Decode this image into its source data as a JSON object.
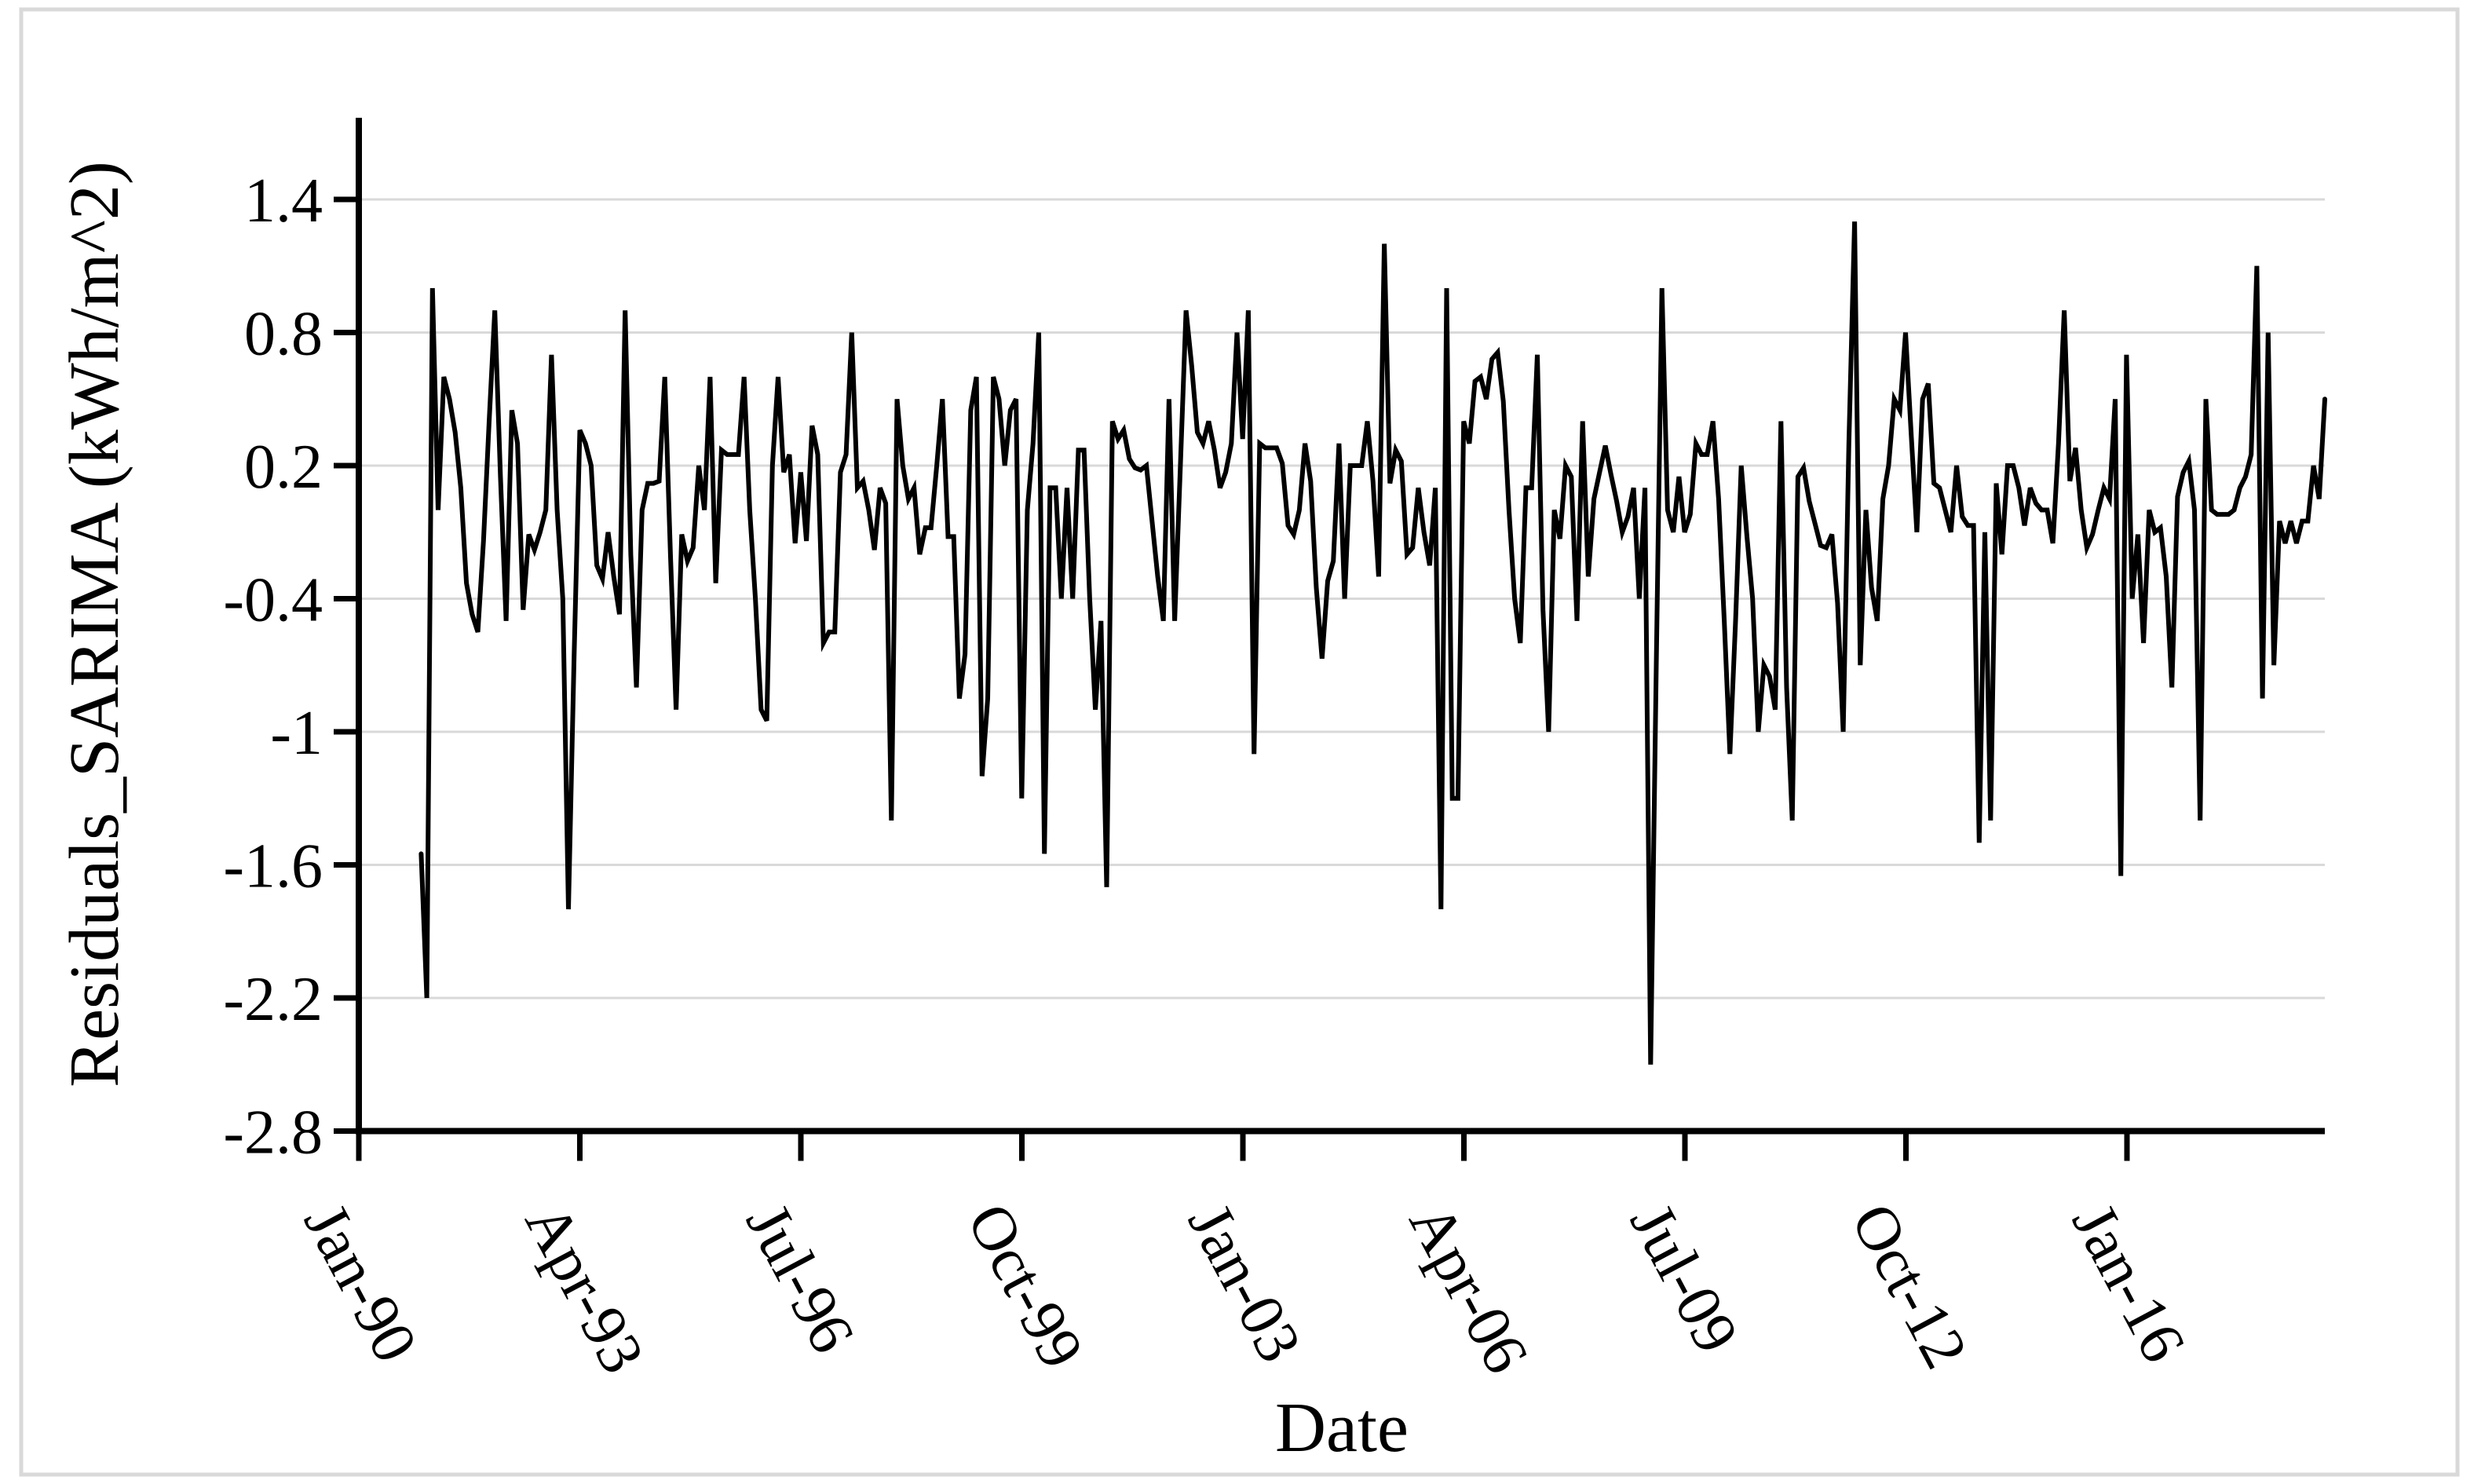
{
  "figure": {
    "background": "#ffffff",
    "border_color": "#d9d9d9",
    "plot_background": "#ffffff"
  },
  "chart_data": {
    "type": "line",
    "title": "",
    "xlabel": "Date",
    "ylabel": "Residuals_SARIMA (kWh/m^2)",
    "legend": "none",
    "grid": "horizontal",
    "line_color": "#000000",
    "grid_color": "#d9d9d9",
    "axis_color": "#000000",
    "ylim": [
      -2.8,
      1.85
    ],
    "y_ticks": [
      1.4,
      0.8,
      0.2,
      -0.4,
      -1,
      -1.6,
      -2.2,
      -2.8
    ],
    "y_tick_labels": [
      "1.4",
      "0.8",
      "0.2",
      "-0.4",
      "-1",
      "-1.6",
      "-2.2",
      "-2.8"
    ],
    "x_tick_labels": [
      "Jan-90",
      "Apr-93",
      "Jul-96",
      "Oct-99",
      "Jan-03",
      "Apr-06",
      "Jul-09",
      "Oct-12",
      "Jan-16"
    ],
    "x_tick_interval_months": 39,
    "x_axis_start": "Jan-1990",
    "series_name": "Residuals_SARIMA",
    "series_start": "Dec-1990",
    "series_end": "Dec-2018",
    "frequency": "monthly",
    "values": [
      -1.55,
      -2.2,
      1.0,
      0.0,
      0.6,
      0.5,
      0.35,
      0.1,
      -0.33,
      -0.47,
      -0.55,
      -0.14,
      0.4,
      0.9,
      0.15,
      -0.5,
      0.45,
      0.3,
      -0.45,
      -0.11,
      -0.18,
      -0.1,
      0.0,
      0.7,
      0.0,
      -0.4,
      -1.8,
      -0.66,
      0.36,
      0.3,
      0.2,
      -0.25,
      -0.31,
      -0.1,
      -0.3,
      -0.47,
      0.9,
      -0.2,
      -0.8,
      0.0,
      0.12,
      0.12,
      0.13,
      0.6,
      -0.2,
      -0.9,
      -0.11,
      -0.23,
      -0.17,
      0.2,
      0.0,
      0.6,
      -0.33,
      0.27,
      0.25,
      0.25,
      0.25,
      0.6,
      0.0,
      -0.4,
      -0.9,
      -0.95,
      0.2,
      0.6,
      0.17,
      0.25,
      -0.15,
      0.17,
      -0.14,
      0.38,
      0.25,
      -0.6,
      -0.55,
      -0.55,
      0.17,
      0.25,
      0.8,
      0.1,
      0.13,
      0.0,
      -0.18,
      0.1,
      0.03,
      -1.4,
      0.5,
      0.2,
      0.05,
      0.1,
      -0.2,
      -0.08,
      -0.08,
      0.2,
      0.5,
      -0.12,
      -0.12,
      -0.85,
      -0.65,
      0.45,
      0.6,
      -1.2,
      -0.85,
      0.6,
      0.5,
      0.2,
      0.45,
      0.5,
      -1.3,
      0.0,
      0.3,
      0.8,
      -1.55,
      0.1,
      0.1,
      -0.4,
      0.1,
      -0.4,
      0.27,
      0.27,
      -0.4,
      -0.9,
      -0.5,
      -1.7,
      0.4,
      0.32,
      0.36,
      0.23,
      0.19,
      0.18,
      0.2,
      -0.05,
      -0.3,
      -0.5,
      0.5,
      -0.5,
      0.2,
      0.9,
      0.65,
      0.35,
      0.3,
      0.4,
      0.27,
      0.1,
      0.17,
      0.3,
      0.8,
      0.32,
      0.9,
      -1.1,
      0.3,
      0.28,
      0.28,
      0.28,
      0.21,
      -0.07,
      -0.11,
      0.0,
      0.3,
      0.13,
      -0.35,
      -0.67,
      -0.32,
      -0.23,
      0.3,
      -0.4,
      0.2,
      0.2,
      0.2,
      0.4,
      0.13,
      -0.3,
      1.2,
      0.12,
      0.27,
      0.22,
      -0.2,
      -0.17,
      0.1,
      -0.1,
      -0.25,
      0.1,
      -1.8,
      1.0,
      -1.3,
      -1.3,
      0.4,
      0.3,
      0.58,
      0.6,
      0.5,
      0.68,
      0.71,
      0.49,
      0.0,
      -0.4,
      -0.6,
      0.1,
      0.1,
      0.7,
      -0.45,
      -1.0,
      0.0,
      -0.13,
      0.2,
      0.15,
      -0.5,
      0.4,
      -0.3,
      0.05,
      0.17,
      0.29,
      0.16,
      0.04,
      -0.1,
      -0.03,
      0.1,
      -0.4,
      0.1,
      -2.5,
      -0.7,
      1.0,
      0.0,
      -0.1,
      0.15,
      -0.1,
      -0.02,
      0.3,
      0.25,
      0.25,
      0.4,
      0.05,
      -0.5,
      -1.1,
      -0.5,
      0.2,
      -0.12,
      -0.4,
      -1.0,
      -0.7,
      -0.75,
      -0.9,
      0.4,
      -0.8,
      -1.4,
      0.15,
      0.19,
      0.04,
      -0.06,
      -0.16,
      -0.17,
      -0.11,
      -0.42,
      -1.0,
      0.3,
      1.3,
      -0.7,
      0.0,
      -0.35,
      -0.5,
      0.05,
      0.2,
      0.5,
      0.45,
      0.8,
      0.34,
      -0.1,
      0.5,
      0.57,
      0.12,
      0.1,
      0.0,
      -0.1,
      0.2,
      -0.03,
      -0.07,
      -0.07,
      -1.5,
      -0.1,
      -1.4,
      0.12,
      -0.2,
      0.2,
      0.2,
      0.1,
      -0.07,
      0.1,
      0.03,
      0.0,
      0.0,
      -0.15,
      0.3,
      0.9,
      0.13,
      0.28,
      0.0,
      -0.17,
      -0.11,
      0.0,
      0.1,
      0.05,
      0.5,
      -1.65,
      0.7,
      -0.4,
      -0.11,
      -0.6,
      0.0,
      -0.1,
      -0.08,
      -0.3,
      -0.8,
      0.06,
      0.17,
      0.22,
      0.0,
      -1.4,
      0.5,
      0.0,
      -0.02,
      -0.02,
      -0.02,
      0.0,
      0.1,
      0.15,
      0.25,
      1.1,
      -0.85,
      0.8,
      -0.7,
      -0.05,
      -0.15,
      -0.05,
      -0.15,
      -0.05,
      -0.05,
      0.2,
      0.05,
      0.5
    ]
  }
}
